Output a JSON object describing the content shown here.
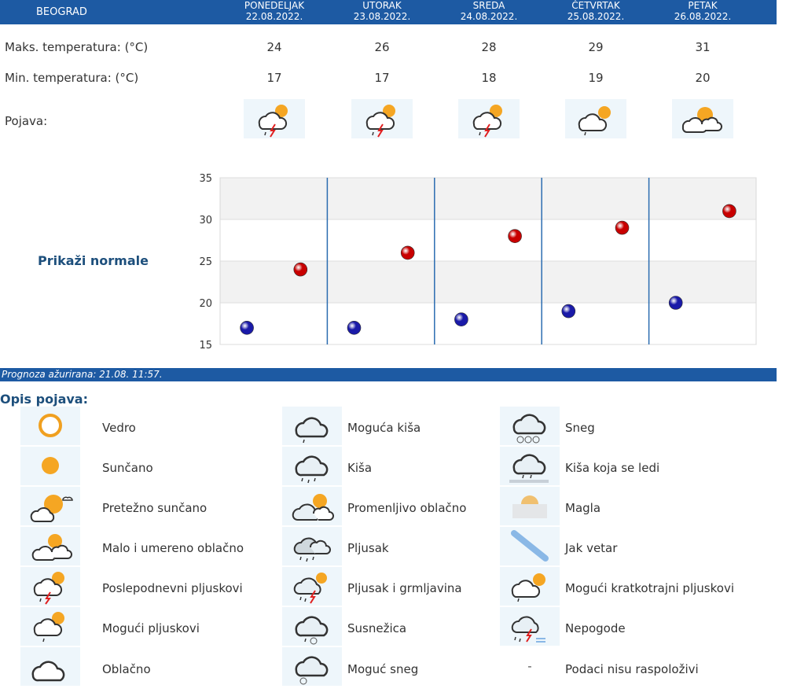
{
  "header": {
    "city": "BEOGRAD",
    "days": [
      {
        "name": "PONEDELJAK",
        "date": "22.08.2022."
      },
      {
        "name": "UTORAK",
        "date": "23.08.2022."
      },
      {
        "name": "SREDA",
        "date": "24.08.2022."
      },
      {
        "name": "ČETVRTAK",
        "date": "25.08.2022."
      },
      {
        "name": "PETAK",
        "date": "26.08.2022."
      }
    ]
  },
  "rows": {
    "max_label": "Maks. temperatura: (°C)",
    "min_label": "Min. temperatura: (°C)",
    "pojava_label": "Pojava:",
    "max_values": [
      "24",
      "26",
      "28",
      "29",
      "31"
    ],
    "min_values": [
      "17",
      "17",
      "18",
      "19",
      "20"
    ],
    "pojava_icons": [
      "afternoon-showers-icon",
      "afternoon-showers-icon",
      "afternoon-showers-icon",
      "possible-short-showers-icon",
      "mostly-sunny-icon"
    ]
  },
  "prikazi_label": "Prikaži normale",
  "chart_data": {
    "type": "scatter",
    "title": "",
    "xlabel": "",
    "ylabel": "",
    "categories": [
      "22.08.2022.",
      "23.08.2022.",
      "24.08.2022.",
      "25.08.2022.",
      "26.08.2022."
    ],
    "ylim": [
      15,
      35
    ],
    "yticks": [
      "15",
      "20",
      "25",
      "30",
      "35"
    ],
    "grid": true,
    "series": [
      {
        "values": [
          17,
          17,
          18,
          19,
          20
        ],
        "color": "#1a1aa8"
      },
      {
        "values": [
          24,
          26,
          28,
          29,
          31
        ],
        "color": "#c80000"
      }
    ]
  },
  "updated_text": "Prognoza ažurirana:  21.08. 11:57.",
  "legend_title": "Opis pojava:",
  "legend": [
    {
      "label": "Vedro",
      "icon": "clear-sun-icon"
    },
    {
      "label": "Sunčano",
      "icon": "sunny-icon"
    },
    {
      "label": "Pretežno sunčano",
      "icon": "mostly-sunny-icon"
    },
    {
      "label": "Malo i umereno oblačno",
      "icon": "partly-cloudy-icon"
    },
    {
      "label": "Poslepodnevni pljuskovi",
      "icon": "afternoon-showers-icon"
    },
    {
      "label": "Mogući pljuskovi",
      "icon": "possible-showers-icon"
    },
    {
      "label": "Oblačno",
      "icon": "cloudy-icon"
    },
    {
      "label": "Moguća kiša",
      "icon": "possible-rain-icon"
    },
    {
      "label": "Kiša",
      "icon": "rain-icon"
    },
    {
      "label": "Promenljivo oblačno",
      "icon": "variable-cloudy-icon"
    },
    {
      "label": "Pljusak",
      "icon": "shower-icon"
    },
    {
      "label": "Pljusak i grmljavina",
      "icon": "thunder-shower-icon"
    },
    {
      "label": "Susnežica",
      "icon": "sleet-icon"
    },
    {
      "label": "Moguć sneg",
      "icon": "possible-snow-icon"
    },
    {
      "label": "Sneg",
      "icon": "snow-icon"
    },
    {
      "label": "Kiša koja se ledi",
      "icon": "freezing-rain-icon"
    },
    {
      "label": "Magla",
      "icon": "fog-icon"
    },
    {
      "label": "Jak vetar",
      "icon": "strong-wind-icon"
    },
    {
      "label": "Mogući kratkotrajni pljuskovi",
      "icon": "possible-short-showers-icon"
    },
    {
      "label": "Nepogode",
      "icon": "storms-icon"
    },
    {
      "label": "Podaci nisu raspoloživi",
      "icon": "",
      "placeholder": "-"
    }
  ]
}
